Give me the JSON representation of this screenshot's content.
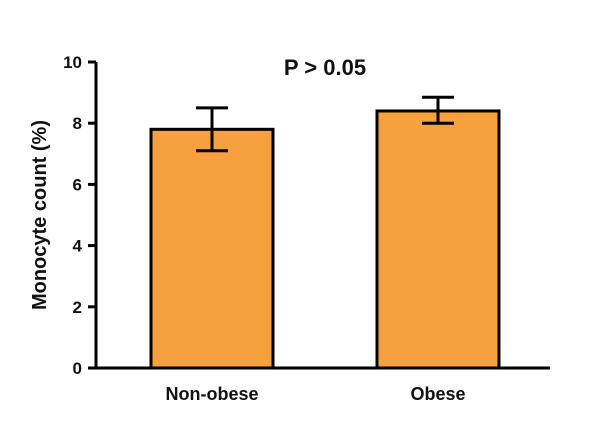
{
  "chart_data": {
    "type": "bar",
    "categories": [
      "Non-obese",
      "Obese"
    ],
    "values": [
      7.8,
      8.4
    ],
    "error_low": [
      7.1,
      8.0
    ],
    "error_high": [
      8.5,
      8.85
    ],
    "title": "",
    "annotation": "P > 0.05",
    "xlabel": "",
    "ylabel": "Monocyte count (%)",
    "ylim": [
      0,
      10
    ],
    "yticks": [
      0,
      2,
      4,
      6,
      8,
      10
    ],
    "grid": false,
    "bar_color": "#F7A040",
    "edge_color": "#000000"
  }
}
